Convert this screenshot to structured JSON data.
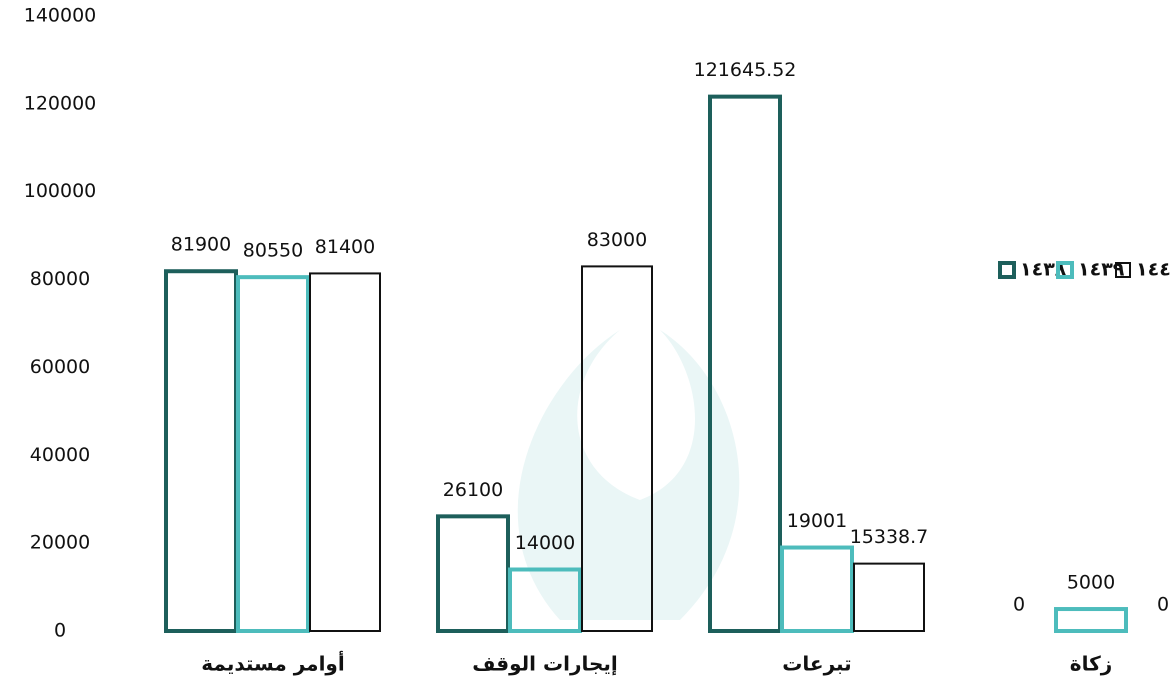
{
  "chart_data": {
    "type": "bar",
    "categories": [
      "أوامر مستديمة",
      "إيجارات الوقف",
      "تبرعات",
      "زكاة"
    ],
    "series": [
      {
        "name": "١٤٣٨",
        "color": "#1d5f5b",
        "values": [
          81900,
          26100,
          121645.52,
          0
        ]
      },
      {
        "name": "١٤٣٩",
        "color": "#4dbcbc",
        "values": [
          80550,
          14000,
          19001,
          5000
        ]
      },
      {
        "name": "١٤٤٠",
        "color": "#111111",
        "values": [
          81400,
          83000,
          15338.7,
          0
        ]
      }
    ],
    "ylim": [
      0,
      140000
    ],
    "yticks": [
      0,
      20000,
      40000,
      60000,
      80000,
      100000,
      120000,
      140000
    ],
    "grid": false,
    "legend": "right"
  }
}
